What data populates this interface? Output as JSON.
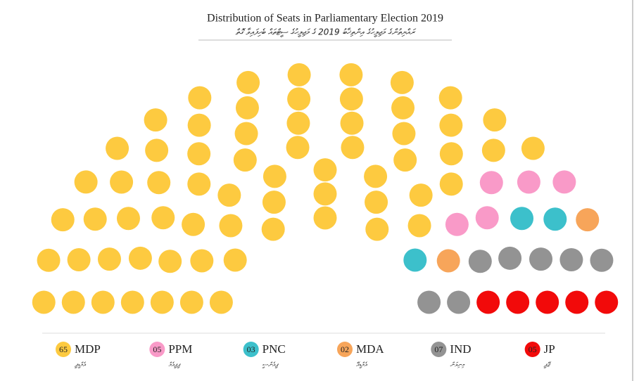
{
  "chart_data": {
    "type": "parliament",
    "title": "Distribution of Seats in Parliamentary Election 2019",
    "subtitle": "ރައްޔިތުންގެ މަޖިލީހުގެ އިންތިޚާބު 2019 ގެ މަޖިލީހުގެ ސީޓްތައް ބެހިފައިވާ ގޮތް",
    "series": [
      {
        "name": "MDP",
        "local_name": "އެމްޑީޕީ",
        "color": "#fdca40",
        "values": [
          65
        ],
        "value_labels": [
          "65"
        ]
      },
      {
        "name": "PPM",
        "local_name": "ޕީޕީއެމް",
        "color": "#f99ac8",
        "values": [
          5
        ],
        "value_labels": [
          "05"
        ]
      },
      {
        "name": "PNC",
        "local_name": "ޕީއެންސީ",
        "color": "#3cc0cb",
        "values": [
          3
        ],
        "value_labels": [
          "03"
        ]
      },
      {
        "name": "MDA",
        "local_name": "އެމްޑީއޭ",
        "color": "#f7a55a",
        "values": [
          2
        ],
        "value_labels": [
          "02"
        ]
      },
      {
        "name": "IND",
        "local_name": "މިނިވަން",
        "color": "#939393",
        "values": [
          7
        ],
        "value_labels": [
          "07"
        ]
      },
      {
        "name": "JP",
        "local_name": "ޖޭޕީ",
        "color": "#f20a0a",
        "values": [
          5
        ],
        "value_labels": [
          "05"
        ]
      }
    ]
  }
}
